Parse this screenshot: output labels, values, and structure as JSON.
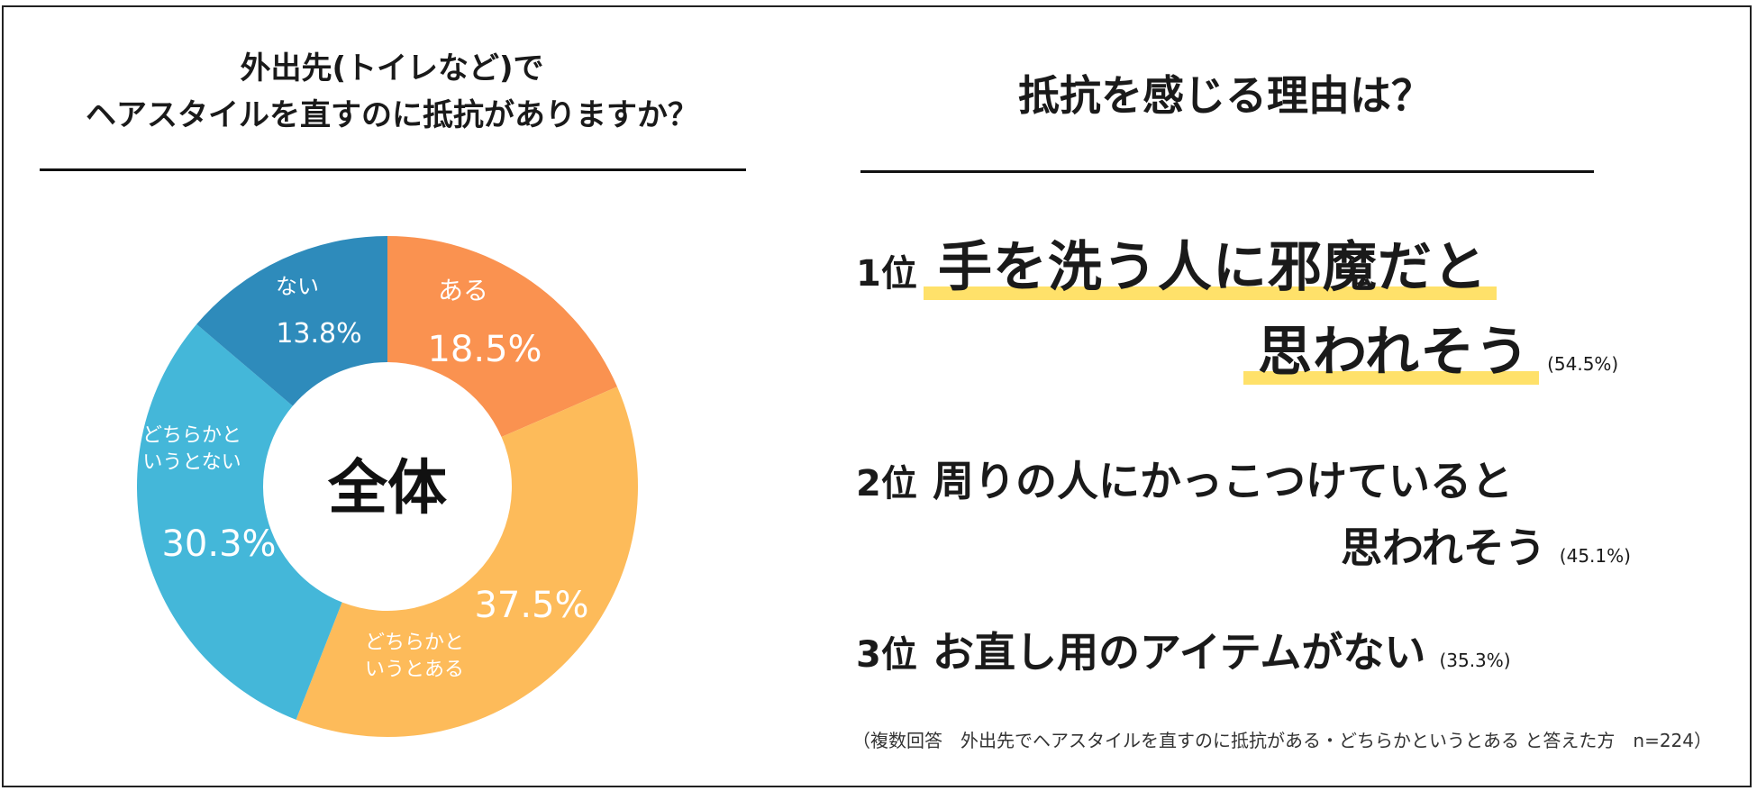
{
  "left": {
    "title_line1": "外出先(トイレなど)で",
    "title_line2": "ヘアスタイルを直すのに抵抗がありますか？"
  },
  "right": {
    "title": "抵抗を感じる理由は？",
    "ranks": [
      {
        "rank": "1位",
        "line1": "手を洗う人に邪魔だと",
        "line2": "思われそう",
        "pct": "(54.5%)"
      },
      {
        "rank": "2位",
        "line1": "周りの人にかっこつけていると",
        "line2": "思われそう",
        "pct": "(45.1%)"
      },
      {
        "rank": "3位",
        "line1": "お直し用のアイテムがない",
        "pct": "(35.3%)"
      }
    ],
    "note": "（複数回答　外出先でヘアスタイルを直すのに抵抗がある・どちらかというとある と答えた方　n=224）"
  },
  "chart_data": {
    "type": "pie",
    "center_label": "全体",
    "slices": [
      {
        "label": "ある",
        "value": 18.5,
        "value_text": "18.5%",
        "color": "#fa9250"
      },
      {
        "label": "どちらかと\nいうとある",
        "value": 37.5,
        "value_text": "37.5%",
        "color": "#fdbb5a"
      },
      {
        "label": "どちらかと\nいうとない",
        "value": 30.3,
        "value_text": "30.3%",
        "color": "#44b7d9"
      },
      {
        "label": "ない",
        "value": 13.8,
        "value_text": "13.8%",
        "color": "#2e8bbb"
      }
    ]
  }
}
